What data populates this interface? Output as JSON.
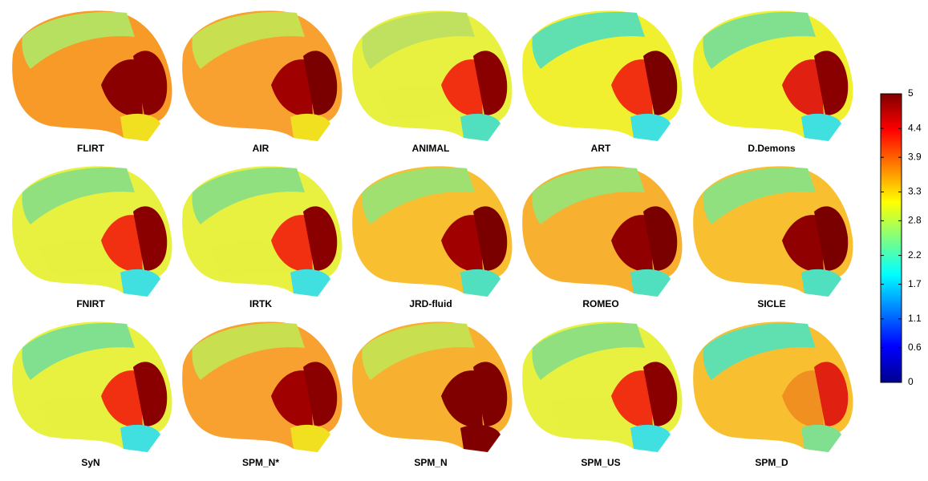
{
  "panels": [
    {
      "label": "FLIRT"
    },
    {
      "label": "AIR"
    },
    {
      "label": "ANIMAL"
    },
    {
      "label": "ART"
    },
    {
      "label": "D.Demons"
    },
    {
      "label": "FNIRT"
    },
    {
      "label": "IRTK"
    },
    {
      "label": "JRD-fluid"
    },
    {
      "label": "ROMEO"
    },
    {
      "label": "SICLE"
    },
    {
      "label": "SyN"
    },
    {
      "label": "SPM_N*"
    },
    {
      "label": "SPM_N"
    },
    {
      "label": "SPM_US"
    },
    {
      "label": "SPM_D"
    }
  ],
  "colorbar": {
    "range": [
      0,
      5
    ],
    "ticks": [
      0,
      0.6,
      1.1,
      1.7,
      2.2,
      2.8,
      3.3,
      3.9,
      4.4,
      5
    ]
  }
}
